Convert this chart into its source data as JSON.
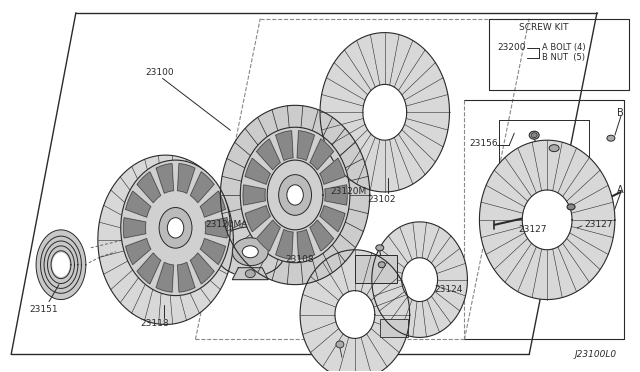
{
  "bg_color": "#ffffff",
  "line_color": "#2a2a2a",
  "fig_width": 6.4,
  "fig_height": 3.72,
  "dpi": 100,
  "diagram_label": "J23100L0",
  "bolt_label": "A BOLT (4)",
  "nut_label": "B NUT  (5)"
}
